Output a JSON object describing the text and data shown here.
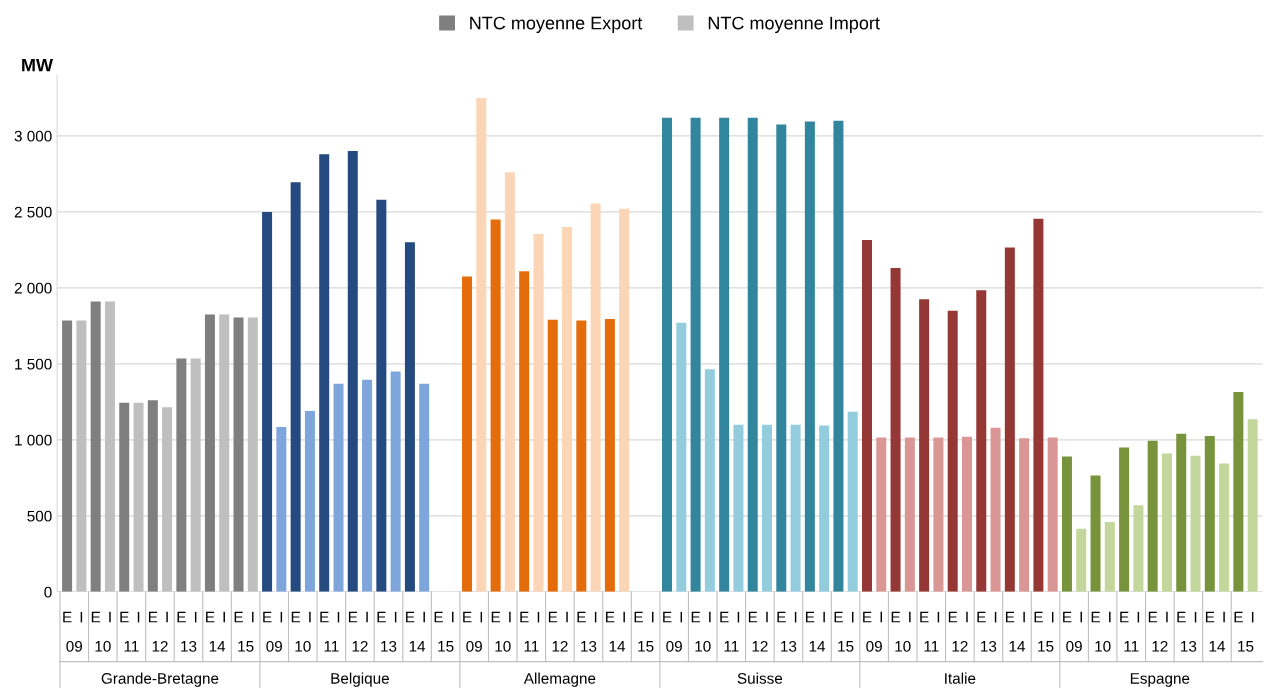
{
  "chart_data": {
    "type": "bar",
    "ylabel": "MW",
    "legend": "top",
    "grid": "y",
    "categories": [
      "E",
      "I",
      "E",
      "I",
      "E",
      "I",
      "E",
      "I",
      "E",
      "I",
      "E",
      "I",
      "E",
      "I",
      "E",
      "I",
      "E",
      "I",
      "E",
      "I",
      "E",
      "I",
      "E",
      "I",
      "E",
      "I",
      "E",
      "I",
      "E",
      "I",
      "E",
      "I",
      "E",
      "I",
      "E",
      "I",
      "E",
      "I",
      "E",
      "I",
      "E",
      "I",
      "E",
      "I",
      "E",
      "I",
      "E",
      "I",
      "E",
      "I",
      "E",
      "I",
      "E",
      "I",
      "E",
      "I",
      "E",
      "I",
      "E",
      "I",
      "E",
      "I",
      "E",
      "I",
      "E",
      "I",
      "E",
      "I",
      "E",
      "I",
      "E",
      "I",
      "E",
      "I",
      "E",
      "I",
      "E",
      "I",
      "E",
      "I",
      "E",
      "I",
      "E",
      "I"
    ],
    "ylim": [
      0,
      3400
    ],
    "yticks": [
      0,
      500,
      {
        "value": 1000,
        "label": "1 000"
      },
      {
        "value": 1500,
        "label": "1 500"
      },
      {
        "value": 2000,
        "label": "2 000"
      },
      {
        "value": 2500,
        "label": "2 500"
      },
      {
        "value": 3000,
        "label": "3 000"
      }
    ],
    "series": [
      {
        "name": "NTC moyenne Export",
        "color": "#7f7f7f",
        "values": [
          1785,
          null,
          1910,
          null,
          1245,
          null,
          1260,
          null,
          1535,
          null,
          1825,
          null,
          1805,
          null,
          2500,
          null,
          2695,
          null,
          2880,
          null,
          2900,
          null,
          2580,
          null,
          2300,
          null,
          null,
          null,
          2075,
          null,
          2450,
          null,
          2110,
          null,
          1790,
          null,
          1785,
          null,
          1795,
          null,
          null,
          null,
          3120,
          null,
          3120,
          null,
          3120,
          null,
          3120,
          null,
          3075,
          null,
          3095,
          null,
          3100,
          null,
          2315,
          null,
          2130,
          null,
          1925,
          null,
          1850,
          null,
          1985,
          null,
          2265,
          null,
          2455,
          null,
          890,
          null,
          765,
          null,
          950,
          null,
          995,
          null,
          1040,
          null,
          1025,
          null,
          1315,
          null
        ],
        "colors": [
          "#7f7f7f",
          null,
          "#7f7f7f",
          null,
          "#7f7f7f",
          null,
          "#7f7f7f",
          null,
          "#7f7f7f",
          null,
          "#7f7f7f",
          null,
          "#7f7f7f",
          null,
          "#254a80",
          null,
          "#254a80",
          null,
          "#254a80",
          null,
          "#254a80",
          null,
          "#254a80",
          null,
          "#254a80",
          null,
          null,
          null,
          "#e46c0a",
          null,
          "#e46c0a",
          null,
          "#e46c0a",
          null,
          "#e46c0a",
          null,
          "#e46c0a",
          null,
          "#e46c0a",
          null,
          null,
          null,
          "#31859c",
          null,
          "#31859c",
          null,
          "#31859c",
          null,
          "#31859c",
          null,
          "#31859c",
          null,
          "#31859c",
          null,
          "#31859c",
          null,
          "#953735",
          null,
          "#953735",
          null,
          "#953735",
          null,
          "#953735",
          null,
          "#953735",
          null,
          "#953735",
          null,
          "#953735",
          null,
          "#77933c",
          null,
          "#77933c",
          null,
          "#77933c",
          null,
          "#77933c",
          null,
          "#77933c",
          null,
          "#77933c",
          null,
          "#77933c",
          null
        ]
      },
      {
        "name": "NTC moyenne Import",
        "color": "#bfbfbf",
        "values": [
          null,
          1785,
          null,
          1910,
          null,
          1245,
          null,
          1215,
          null,
          1535,
          null,
          1825,
          null,
          1805,
          null,
          1085,
          null,
          1190,
          null,
          1370,
          null,
          1395,
          null,
          1450,
          null,
          1370,
          null,
          null,
          null,
          3250,
          null,
          2760,
          null,
          2355,
          null,
          2400,
          null,
          2555,
          null,
          2520,
          null,
          null,
          null,
          1770,
          null,
          1465,
          null,
          1100,
          null,
          1100,
          null,
          1100,
          null,
          1095,
          null,
          1185,
          null,
          1015,
          null,
          1015,
          null,
          1015,
          null,
          1020,
          null,
          1080,
          null,
          1010,
          null,
          1015,
          null,
          415,
          null,
          460,
          null,
          570,
          null,
          910,
          null,
          895,
          null,
          845,
          null,
          1135
        ],
        "colors": [
          null,
          "#bfbfbf",
          null,
          "#bfbfbf",
          null,
          "#bfbfbf",
          null,
          "#bfbfbf",
          null,
          "#bfbfbf",
          null,
          "#bfbfbf",
          null,
          "#bfbfbf",
          null,
          "#7fa6dc",
          null,
          "#7fa6dc",
          null,
          "#7fa6dc",
          null,
          "#7fa6dc",
          null,
          "#7fa6dc",
          null,
          "#7fa6dc",
          null,
          null,
          null,
          "#fbd5b5",
          null,
          "#fbd5b5",
          null,
          "#fbd5b5",
          null,
          "#fbd5b5",
          null,
          "#fbd5b5",
          null,
          "#fbd5b5",
          null,
          null,
          null,
          "#93cddd",
          null,
          "#93cddd",
          null,
          "#93cddd",
          null,
          "#93cddd",
          null,
          "#93cddd",
          null,
          "#93cddd",
          null,
          "#93cddd",
          null,
          "#d99694",
          null,
          "#d99694",
          null,
          "#d99694",
          null,
          "#d99694",
          null,
          "#d99694",
          null,
          "#d99694",
          null,
          "#d99694",
          null,
          "#c3d69b",
          null,
          "#c3d69b",
          null,
          "#c3d69b",
          null,
          "#c3d69b",
          null,
          "#c3d69b",
          null,
          "#c3d69b",
          null,
          "#c3d69b"
        ]
      }
    ],
    "annotations": [
      "09",
      "10",
      "11",
      "12",
      "13",
      "14",
      "15",
      "09",
      "10",
      "11",
      "12",
      "13",
      "14",
      "15",
      "09",
      "10",
      "11",
      "12",
      "13",
      "14",
      "15",
      "09",
      "10",
      "11",
      "12",
      "13",
      "14",
      "15",
      "09",
      "10",
      "11",
      "12",
      "13",
      "14",
      "15",
      "09",
      "10",
      "11",
      "12",
      "13",
      "14",
      "15",
      "Grande-Bretagne",
      "Belgique",
      "Allemagne",
      "Suisse",
      "Italie",
      "Espagne"
    ]
  }
}
